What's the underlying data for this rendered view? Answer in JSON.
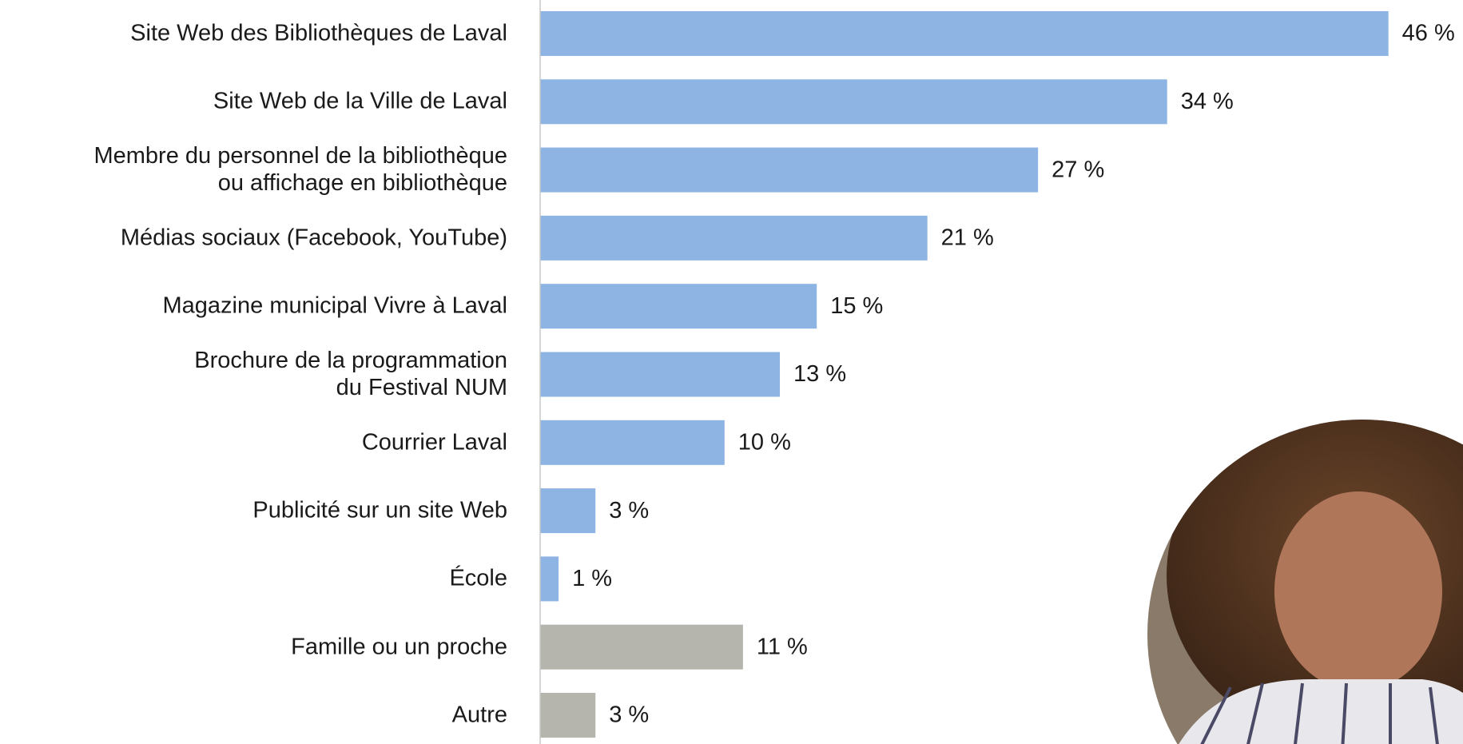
{
  "chart_data": {
    "type": "bar",
    "orientation": "horizontal",
    "categories": [
      "Site Web des Bibliothèques de Laval",
      "Site Web de la Ville de Laval",
      "Membre du personnel de la bibliothèque\nou affichage en bibliothèque",
      "Médias sociaux (Facebook, YouTube)",
      "Magazine municipal Vivre à Laval",
      "Brochure de la programmation\ndu Festival NUM",
      "Courrier Laval",
      "Publicité sur un site Web",
      "École",
      "Famille ou un proche",
      "Autre"
    ],
    "values": [
      46,
      34,
      27,
      21,
      15,
      13,
      10,
      3,
      1,
      11,
      3
    ],
    "value_labels": [
      "46 %",
      "34 %",
      "27 %",
      "21 %",
      "15 %",
      "13 %",
      "10 %",
      "3 %",
      "1 %",
      "11 %",
      "3 %"
    ],
    "colors": [
      "#8db4e2",
      "#8db4e2",
      "#8db4e2",
      "#8db4e2",
      "#8db4e2",
      "#8db4e2",
      "#8db4e2",
      "#8db4e2",
      "#8db4e2",
      "#b5b5ae",
      "#b5b5ae"
    ],
    "xlim": [
      0,
      50
    ]
  }
}
